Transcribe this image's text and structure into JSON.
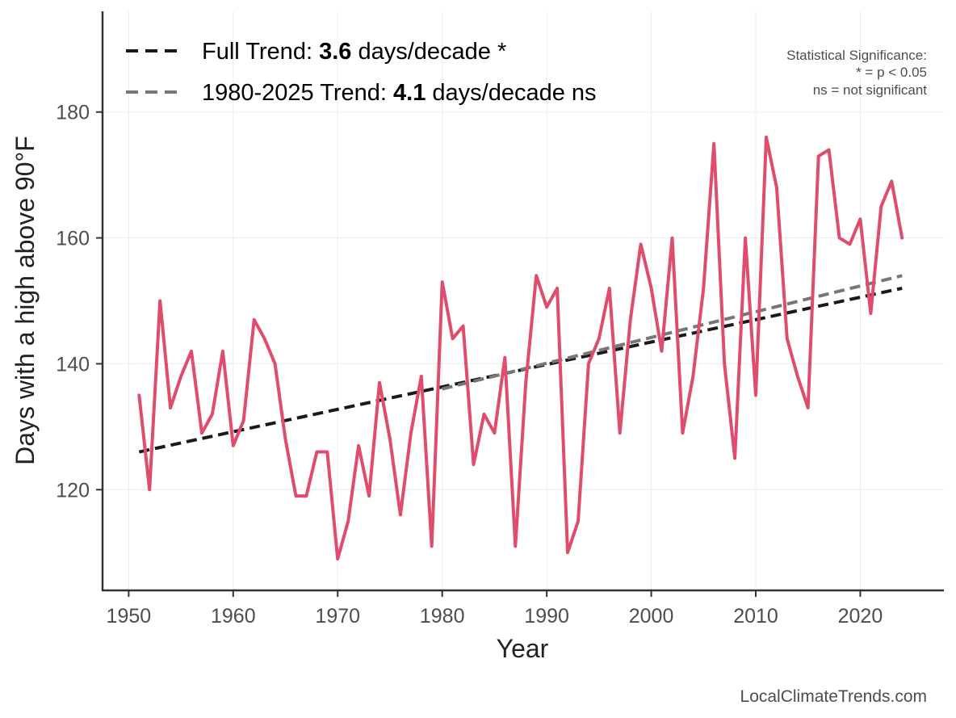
{
  "chart_data": {
    "type": "line",
    "title": "",
    "xlabel": "Year",
    "ylabel": "Days with a high above 90°F",
    "xlim": [
      1947.5,
      2028
    ],
    "ylim": [
      104,
      196
    ],
    "xticks": [
      1950,
      1960,
      1970,
      1980,
      1990,
      2000,
      2010,
      2020
    ],
    "yticks": [
      120,
      140,
      160,
      180
    ],
    "grid": true,
    "series": [
      {
        "name": "Days with a high above 90°F",
        "color": "#e04c6c",
        "x": [
          1951,
          1952,
          1953,
          1954,
          1955,
          1956,
          1957,
          1958,
          1959,
          1960,
          1961,
          1962,
          1963,
          1964,
          1965,
          1966,
          1967,
          1968,
          1969,
          1970,
          1971,
          1972,
          1973,
          1974,
          1975,
          1976,
          1977,
          1978,
          1979,
          1980,
          1981,
          1982,
          1983,
          1984,
          1985,
          1986,
          1987,
          1988,
          1989,
          1990,
          1991,
          1992,
          1993,
          1994,
          1995,
          1996,
          1997,
          1998,
          1999,
          2000,
          2001,
          2002,
          2003,
          2004,
          2005,
          2006,
          2007,
          2008,
          2009,
          2010,
          2011,
          2012,
          2013,
          2014,
          2015,
          2016,
          2017,
          2018,
          2019,
          2020,
          2021,
          2022,
          2023,
          2024
        ],
        "values": [
          135,
          120,
          150,
          133,
          138,
          142,
          129,
          132,
          142,
          127,
          131,
          147,
          144,
          140,
          128,
          119,
          119,
          126,
          126,
          109,
          115,
          127,
          119,
          137,
          128,
          116,
          129,
          138,
          111,
          153,
          144,
          146,
          124,
          132,
          129,
          141,
          111,
          137,
          154,
          149,
          152,
          110,
          115,
          140,
          144,
          152,
          129,
          147,
          159,
          152,
          142,
          160,
          129,
          138,
          152,
          175,
          140,
          125,
          160,
          135,
          176,
          168,
          144,
          138,
          133,
          173,
          174,
          160,
          159,
          163,
          148,
          165,
          169,
          160
        ]
      }
    ],
    "trends": [
      {
        "name": "Full Trend",
        "label_prefix": "Full Trend: ",
        "rate": "3.6",
        "label_suffix": " days/decade *",
        "color": "#1a1a1a",
        "x": [
          1951,
          2024
        ],
        "y": [
          126,
          152
        ]
      },
      {
        "name": "1980-2025 Trend",
        "label_prefix": "1980-2025 Trend: ",
        "rate": "4.1",
        "label_suffix": " days/decade ns",
        "color": "#777777",
        "x": [
          1980,
          2024
        ],
        "y": [
          136,
          154
        ]
      }
    ],
    "legend": "top-left",
    "annotations": [
      "Statistical Significance:",
      "* = p < 0.05",
      "ns = not significant"
    ],
    "credit": "LocalClimateTrends.com"
  }
}
